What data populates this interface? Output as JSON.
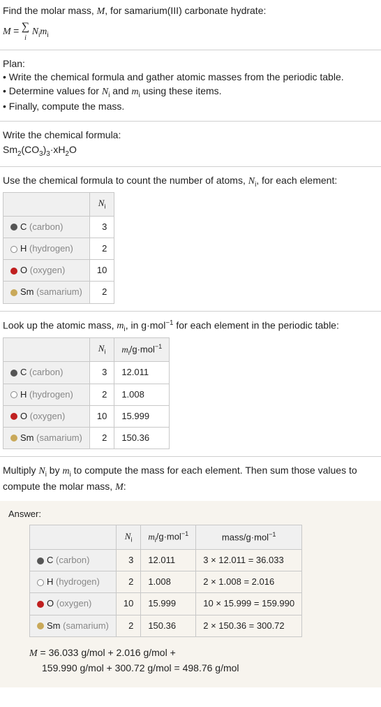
{
  "intro": {
    "line1": "Find the molar mass, ",
    "line1b": ", for samarium(III) carbonate hydrate:",
    "M": "M",
    "formula_prefix": "M = ",
    "formula_sum": "∑",
    "formula_sub": "i",
    "formula_rest": " N",
    "formula_m": "m"
  },
  "plan": {
    "title": "Plan:",
    "b1": "• Write the chemical formula and gather atomic masses from the periodic table.",
    "b2_a": "• Determine values for ",
    "b2_b": " and ",
    "b2_c": " using these items.",
    "b3": "• Finally, compute the mass."
  },
  "writechem": {
    "title": "Write the chemical formula:",
    "formula_parts": [
      "Sm",
      "2",
      "(CO",
      "3",
      ")",
      "3",
      "·xH",
      "2",
      "O"
    ]
  },
  "count": {
    "title_a": "Use the chemical formula to count the number of atoms, ",
    "title_b": ", for each element:",
    "hdr_N": "N",
    "hdr_i": "i",
    "rows": [
      {
        "color": "#555",
        "open": false,
        "sym": "C",
        "name": "(carbon)",
        "n": "3"
      },
      {
        "color": "#888",
        "open": true,
        "sym": "H",
        "name": "(hydrogen)",
        "n": "2"
      },
      {
        "color": "#c02020",
        "open": false,
        "sym": "O",
        "name": "(oxygen)",
        "n": "10"
      },
      {
        "color": "#c9a95a",
        "open": false,
        "sym": "Sm",
        "name": "(samarium)",
        "n": "2"
      }
    ]
  },
  "lookup": {
    "title_a": "Look up the atomic mass, ",
    "title_b": ", in g·mol",
    "title_c": " for each element in the periodic table:",
    "exp": "−1",
    "hdr_m": "m",
    "hdr_mu": "/g·mol",
    "rows": [
      {
        "color": "#555",
        "open": false,
        "sym": "C",
        "name": "(carbon)",
        "n": "3",
        "m": "12.011"
      },
      {
        "color": "#888",
        "open": true,
        "sym": "H",
        "name": "(hydrogen)",
        "n": "2",
        "m": "1.008"
      },
      {
        "color": "#c02020",
        "open": false,
        "sym": "O",
        "name": "(oxygen)",
        "n": "10",
        "m": "15.999"
      },
      {
        "color": "#c9a95a",
        "open": false,
        "sym": "Sm",
        "name": "(samarium)",
        "n": "2",
        "m": "150.36"
      }
    ]
  },
  "multiply": {
    "text_a": "Multiply ",
    "text_b": " by ",
    "text_c": " to compute the mass for each element. Then sum those values to compute the molar mass, ",
    "text_d": ":"
  },
  "answer": {
    "label": "Answer:",
    "hdr_mass": "mass/g·mol",
    "rows": [
      {
        "color": "#555",
        "open": false,
        "sym": "C",
        "name": "(carbon)",
        "n": "3",
        "m": "12.011",
        "mass": "3 × 12.011 = 36.033"
      },
      {
        "color": "#888",
        "open": true,
        "sym": "H",
        "name": "(hydrogen)",
        "n": "2",
        "m": "1.008",
        "mass": "2 × 1.008 = 2.016"
      },
      {
        "color": "#c02020",
        "open": false,
        "sym": "O",
        "name": "(oxygen)",
        "n": "10",
        "m": "15.999",
        "mass": "10 × 15.999 = 159.990"
      },
      {
        "color": "#c9a95a",
        "open": false,
        "sym": "Sm",
        "name": "(samarium)",
        "n": "2",
        "m": "150.36",
        "mass": "2 × 150.36 = 300.72"
      }
    ],
    "final1": " = 36.033 g/mol + 2.016 g/mol + ",
    "final2": "159.990 g/mol + 300.72 g/mol = 498.76 g/mol"
  }
}
